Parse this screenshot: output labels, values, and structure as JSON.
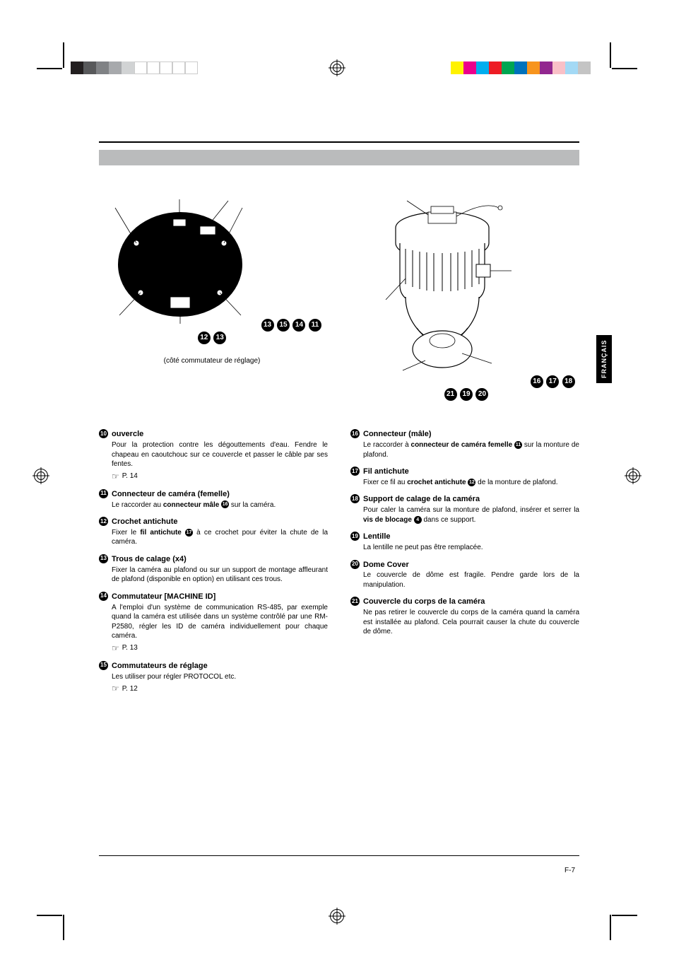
{
  "page_number": "F-7",
  "language_tab": "FRANÇAIS",
  "colors": {
    "grey_bar": "#babbbc",
    "black": "#000000",
    "white": "#ffffff"
  },
  "colorbar_left": [
    "#231f20",
    "#58595b",
    "#808285",
    "#a7a9ac",
    "#d1d3d4",
    "#ffffff",
    "#ffffff",
    "#ffffff",
    "#ffffff",
    "#ffffff"
  ],
  "colorbar_right": [
    "#fff200",
    "#ec008c",
    "#00aeef",
    "#ed1c24",
    "#00a651",
    "#0072bc",
    "#f7941d",
    "#92278f",
    "#f9c0c7",
    "#a3d9f5",
    "#c4c4c4"
  ],
  "caption_left": "(côté commutateur de réglage)",
  "diagram_left_labels": {
    "n11": "11",
    "n12": "12",
    "n13": "13",
    "n14": "14",
    "n15": "15"
  },
  "diagram_right_labels": {
    "n16": "16",
    "n17": "17",
    "n18": "18",
    "n19": "19",
    "n20": "20",
    "n21": "21"
  },
  "entries_left": [
    {
      "num": "10",
      "title": "ouvercle",
      "body": "Pour la protection contre les dégouttements d'eau. Fendre le chapeau en caoutchouc sur ce couvercle et passer le câble par ses fentes.",
      "ref": "P. 14"
    },
    {
      "num": "11",
      "title": "Connecteur de caméra (femelle)",
      "body_pre": "Le raccorder au ",
      "body_bold": "connecteur mâle ",
      "body_ref": "16",
      "body_post": " sur la caméra."
    },
    {
      "num": "12",
      "title": "Crochet antichute",
      "body_pre": "Fixer le ",
      "body_bold": "fil antichute ",
      "body_ref": "17",
      "body_post": " à ce crochet pour éviter la chute de la caméra."
    },
    {
      "num": "13",
      "title": "Trous de calage (x4)",
      "body": "Fixer la caméra au plafond ou sur un support de montage affleurant de plafond (disponible en option) en utilisant ces trous."
    },
    {
      "num": "14",
      "title": "Commutateur [MACHINE ID]",
      "body": "A l'emploi d'un système de communication RS-485, par exemple quand la caméra est utilisée dans un système contrôlé par une RM-P2580, régler les ID de caméra individuellement pour chaque caméra.",
      "ref": "P. 13"
    },
    {
      "num": "15",
      "title": "Commutateurs de réglage",
      "body": "Les utiliser pour régler PROTOCOL etc.",
      "ref": "P. 12"
    }
  ],
  "entries_right": [
    {
      "num": "16",
      "title": "Connecteur (mâle)",
      "body_pre": "Le raccorder à ",
      "body_bold": "connecteur de caméra femelle ",
      "body_ref": "11",
      "body_post": " sur la monture de plafond."
    },
    {
      "num": "17",
      "title": "Fil antichute",
      "body_pre": "Fixer ce fil au ",
      "body_bold": "crochet antichute ",
      "body_ref": "12",
      "body_post": " de la monture de plafond."
    },
    {
      "num": "18",
      "title": "Support de calage de la caméra",
      "body_pre": "Pour caler la caméra sur la monture de plafond, insérer et serrer la ",
      "body_bold": "vis de blocage ",
      "body_ref": "4",
      "body_post": " dans ce support."
    },
    {
      "num": "19",
      "title": "Lentille",
      "body": "La lentille ne peut pas être remplacée."
    },
    {
      "num": "20",
      "title": "Dome Cover",
      "body": "Le couvercle de dôme est fragile. Pendre garde lors de la manipulation."
    },
    {
      "num": "21",
      "title": "Couvercle du corps de la caméra",
      "body": "Ne pas retirer le couvercle du corps de la caméra quand la caméra est installée au plafond. Cela pourrait causer la chute du couvercle de dôme."
    }
  ]
}
